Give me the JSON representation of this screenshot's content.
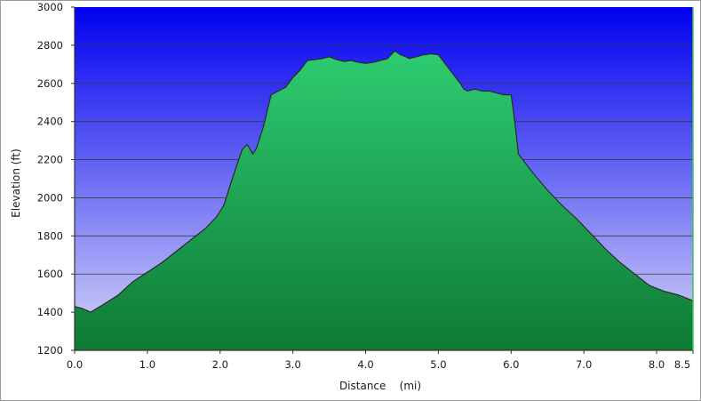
{
  "chart_data": {
    "type": "area",
    "xlabel": "Distance    (mi)",
    "ylabel": "Elevation (ft)",
    "xlim": [
      0,
      8.5
    ],
    "ylim": [
      1200,
      3000
    ],
    "x_ticks": [
      {
        "value": 0,
        "label": "0.0"
      },
      {
        "value": 1,
        "label": "1.0"
      },
      {
        "value": 2,
        "label": "2.0"
      },
      {
        "value": 3,
        "label": "3.0"
      },
      {
        "value": 4,
        "label": "4.0"
      },
      {
        "value": 5,
        "label": "5.0"
      },
      {
        "value": 6,
        "label": "6.0"
      },
      {
        "value": 7,
        "label": "7.0"
      },
      {
        "value": 8,
        "label": "8.0"
      },
      {
        "value": 8.5,
        "label": "8.5"
      }
    ],
    "y_ticks": [
      {
        "value": 1200,
        "label": "1200"
      },
      {
        "value": 1400,
        "label": "1400"
      },
      {
        "value": 1600,
        "label": "1600"
      },
      {
        "value": 1800,
        "label": "1800"
      },
      {
        "value": 2000,
        "label": "2000"
      },
      {
        "value": 2200,
        "label": "2200"
      },
      {
        "value": 2400,
        "label": "2400"
      },
      {
        "value": 2600,
        "label": "2600"
      },
      {
        "value": 2800,
        "label": "2800"
      },
      {
        "value": 3000,
        "label": "3000"
      }
    ],
    "grid": true,
    "colors": {
      "background_top": "#0000f0",
      "background_bottom": "#d8d8f8",
      "fill_top": "#2ecc71",
      "fill_bottom": "#0e7a34",
      "line": "#2a2a2a",
      "grid": "#3a3a3a"
    },
    "series": [
      {
        "x": [
          0,
          0.1,
          0.22,
          0.35,
          0.6,
          0.8,
          1.0,
          1.2,
          1.4,
          1.6,
          1.8,
          1.95,
          2.05,
          2.15,
          2.3,
          2.37,
          2.45,
          2.5,
          2.6,
          2.7,
          2.75,
          2.9,
          3.0,
          3.1,
          3.2,
          3.3,
          3.4,
          3.5,
          3.6,
          3.7,
          3.8,
          3.9,
          4.0,
          4.1,
          4.2,
          4.3,
          4.4,
          4.48,
          4.55,
          4.6,
          4.7,
          4.8,
          4.9,
          5.0,
          5.1,
          5.2,
          5.3,
          5.35,
          5.4,
          5.5,
          5.6,
          5.7,
          5.8,
          5.9,
          6.0,
          6.05,
          6.1,
          6.3,
          6.5,
          6.7,
          6.9,
          7.1,
          7.3,
          7.5,
          7.7,
          7.9,
          8.1,
          8.3,
          8.5
        ],
        "y": [
          1430,
          1420,
          1400,
          1430,
          1490,
          1560,
          1610,
          1660,
          1720,
          1780,
          1840,
          1900,
          1960,
          2080,
          2250,
          2280,
          2230,
          2260,
          2380,
          2540,
          2550,
          2580,
          2630,
          2670,
          2720,
          2725,
          2730,
          2740,
          2725,
          2715,
          2720,
          2710,
          2705,
          2710,
          2720,
          2730,
          2770,
          2750,
          2740,
          2730,
          2740,
          2750,
          2755,
          2750,
          2700,
          2650,
          2600,
          2570,
          2560,
          2570,
          2560,
          2560,
          2550,
          2540,
          2540,
          2400,
          2230,
          2130,
          2040,
          1960,
          1890,
          1810,
          1730,
          1660,
          1600,
          1540,
          1510,
          1490,
          1460
        ]
      }
    ]
  }
}
